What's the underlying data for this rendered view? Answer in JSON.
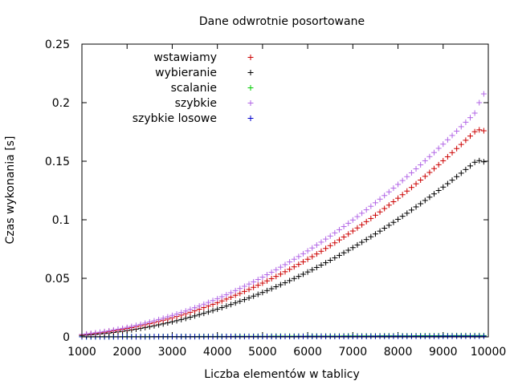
{
  "chart_data": {
    "type": "scatter",
    "title": "Dane odwrotnie posortowane",
    "xlabel": "Liczba elementów w tablicy",
    "ylabel": "Czas wykonania [s]",
    "xlim": [
      1000,
      10000
    ],
    "ylim": [
      0,
      0.25
    ],
    "x_ticks": [
      1000,
      2000,
      3000,
      4000,
      5000,
      6000,
      7000,
      8000,
      9000,
      10000
    ],
    "x_tick_labels": [
      "1000",
      "2000",
      "3000",
      "4000",
      "5000",
      "6000",
      "7000",
      "8000",
      "9000",
      "10000"
    ],
    "y_ticks": [
      0,
      0.05,
      0.1,
      0.15,
      0.2,
      0.25
    ],
    "y_tick_labels": [
      "0",
      "0.05",
      "0.1",
      "0.15",
      "0.2",
      "0.25"
    ],
    "grid": false,
    "legend_position": "top-left",
    "marker": "plus",
    "x": [
      1000,
      1100,
      1200,
      1300,
      1400,
      1500,
      1600,
      1700,
      1800,
      1900,
      2000,
      2100,
      2200,
      2300,
      2400,
      2500,
      2600,
      2700,
      2800,
      2900,
      3000,
      3100,
      3200,
      3300,
      3400,
      3500,
      3600,
      3700,
      3800,
      3900,
      4000,
      4100,
      4200,
      4300,
      4400,
      4500,
      4600,
      4700,
      4800,
      4900,
      5000,
      5100,
      5200,
      5300,
      5400,
      5500,
      5600,
      5700,
      5800,
      5900,
      6000,
      6100,
      6200,
      6300,
      6400,
      6500,
      6600,
      6700,
      6800,
      6900,
      7000,
      7100,
      7200,
      7300,
      7400,
      7500,
      7600,
      7700,
      7800,
      7900,
      8000,
      8100,
      8200,
      8300,
      8400,
      8500,
      8600,
      8700,
      8800,
      8900,
      9000,
      9100,
      9200,
      9300,
      9400,
      9500,
      9600,
      9700,
      9800,
      9900
    ],
    "series": [
      {
        "name": "wstawiamy",
        "color": "#cc0000",
        "values": [
          0.0018,
          0.0022,
          0.0026,
          0.003,
          0.0035,
          0.004,
          0.0046,
          0.0052,
          0.0058,
          0.0065,
          0.0072,
          0.0079,
          0.0087,
          0.0095,
          0.0104,
          0.0113,
          0.0122,
          0.0132,
          0.0142,
          0.0152,
          0.0163,
          0.0174,
          0.0186,
          0.0198,
          0.021,
          0.0223,
          0.0236,
          0.025,
          0.0264,
          0.0278,
          0.0292,
          0.0307,
          0.0323,
          0.0339,
          0.0355,
          0.0371,
          0.0388,
          0.0405,
          0.0423,
          0.0441,
          0.0459,
          0.0478,
          0.0497,
          0.0516,
          0.0536,
          0.0556,
          0.0577,
          0.0598,
          0.0619,
          0.0641,
          0.0663,
          0.0685,
          0.0708,
          0.0731,
          0.0755,
          0.0779,
          0.0803,
          0.0828,
          0.0853,
          0.0878,
          0.0904,
          0.093,
          0.0957,
          0.0984,
          0.1011,
          0.1039,
          0.1067,
          0.1096,
          0.1125,
          0.1154,
          0.1184,
          0.1214,
          0.1245,
          0.1276,
          0.1307,
          0.1339,
          0.1371,
          0.1404,
          0.1437,
          0.147,
          0.1504,
          0.1538,
          0.1573,
          0.1608,
          0.1643,
          0.1679,
          0.1715,
          0.1752,
          0.1768,
          0.176
        ]
      },
      {
        "name": "wybieranie",
        "color": "#000000",
        "values": [
          0.0012,
          0.0015,
          0.0018,
          0.0021,
          0.0025,
          0.0029,
          0.0033,
          0.0038,
          0.0043,
          0.0048,
          0.0054,
          0.006,
          0.0066,
          0.0073,
          0.008,
          0.0087,
          0.0095,
          0.0103,
          0.0111,
          0.012,
          0.0129,
          0.0138,
          0.0148,
          0.0158,
          0.0168,
          0.0179,
          0.019,
          0.0201,
          0.0213,
          0.0225,
          0.0237,
          0.025,
          0.0263,
          0.0276,
          0.029,
          0.0304,
          0.0318,
          0.0333,
          0.0348,
          0.0363,
          0.0379,
          0.0395,
          0.0411,
          0.0428,
          0.0445,
          0.0462,
          0.048,
          0.0498,
          0.0516,
          0.0535,
          0.0554,
          0.0573,
          0.0593,
          0.0613,
          0.0633,
          0.0654,
          0.0675,
          0.0696,
          0.0718,
          0.074,
          0.0762,
          0.0785,
          0.0808,
          0.0831,
          0.0855,
          0.0879,
          0.0903,
          0.0928,
          0.0953,
          0.0978,
          0.1004,
          0.103,
          0.1056,
          0.1083,
          0.111,
          0.1137,
          0.1165,
          0.1193,
          0.1221,
          0.125,
          0.1279,
          0.1308,
          0.1338,
          0.1368,
          0.1398,
          0.1429,
          0.146,
          0.1491,
          0.1505,
          0.1495
        ]
      },
      {
        "name": "scalanie",
        "color": "#00cc00",
        "values": [
          0.0001,
          0.0001,
          0.0001,
          0.0001,
          0.0001,
          0.0001,
          0.0001,
          0.0001,
          0.0001,
          0.0002,
          0.0002,
          0.0002,
          0.0002,
          0.0002,
          0.0002,
          0.0002,
          0.0002,
          0.0002,
          0.0003,
          0.0003,
          0.0003,
          0.0003,
          0.0003,
          0.0003,
          0.0003,
          0.0003,
          0.0004,
          0.0004,
          0.0004,
          0.0004,
          0.0004,
          0.0004,
          0.0004,
          0.0004,
          0.0005,
          0.0005,
          0.0005,
          0.0005,
          0.0005,
          0.0005,
          0.0005,
          0.0005,
          0.0006,
          0.0006,
          0.0006,
          0.0006,
          0.0006,
          0.0006,
          0.0006,
          0.0006,
          0.0007,
          0.0007,
          0.0007,
          0.0007,
          0.0007,
          0.0007,
          0.0007,
          0.0007,
          0.0008,
          0.0008,
          0.0008,
          0.0008,
          0.0008,
          0.0008,
          0.0008,
          0.0008,
          0.0009,
          0.0009,
          0.0009,
          0.0009,
          0.0009,
          0.0009,
          0.0009,
          0.0009,
          0.001,
          0.001,
          0.001,
          0.001,
          0.001,
          0.001,
          0.001,
          0.001,
          0.0011,
          0.0011,
          0.0011,
          0.0011,
          0.0011,
          0.0011,
          0.0011,
          0.0011
        ]
      },
      {
        "name": "szybkie",
        "color": "#b266e6",
        "values": [
          0.0021,
          0.0025,
          0.003,
          0.0035,
          0.004,
          0.0046,
          0.0052,
          0.0059,
          0.0066,
          0.0073,
          0.0081,
          0.0089,
          0.0098,
          0.0107,
          0.0117,
          0.0127,
          0.0137,
          0.0148,
          0.0159,
          0.0171,
          0.0183,
          0.0195,
          0.0208,
          0.0221,
          0.0235,
          0.0249,
          0.0264,
          0.0279,
          0.0294,
          0.031,
          0.0326,
          0.0343,
          0.036,
          0.0377,
          0.0395,
          0.0413,
          0.0432,
          0.0451,
          0.047,
          0.049,
          0.051,
          0.0531,
          0.0552,
          0.0573,
          0.0595,
          0.0617,
          0.064,
          0.0663,
          0.0686,
          0.071,
          0.0734,
          0.0759,
          0.0784,
          0.0809,
          0.0835,
          0.0861,
          0.0888,
          0.0915,
          0.0942,
          0.097,
          0.0998,
          0.1027,
          0.1056,
          0.1085,
          0.1115,
          0.1145,
          0.1176,
          0.1207,
          0.1238,
          0.127,
          0.1302,
          0.1335,
          0.1368,
          0.1401,
          0.1435,
          0.1469,
          0.1504,
          0.1539,
          0.1574,
          0.161,
          0.1646,
          0.1683,
          0.172,
          0.1757,
          0.1795,
          0.1833,
          0.1872,
          0.1911,
          0.2,
          0.2075
        ]
      },
      {
        "name": "szybkie losowe",
        "color": "#0000cc",
        "values": [
          0.0001,
          0.0001,
          0.0001,
          0.0001,
          0.0001,
          0.0001,
          0.0001,
          0.0001,
          0.0001,
          0.0001,
          0.0001,
          0.0001,
          0.0001,
          0.0001,
          0.0001,
          0.0001,
          0.0002,
          0.0002,
          0.0002,
          0.0002,
          0.0002,
          0.0002,
          0.0002,
          0.0002,
          0.0002,
          0.0002,
          0.0002,
          0.0002,
          0.0002,
          0.0002,
          0.0002,
          0.0002,
          0.0003,
          0.0003,
          0.0003,
          0.0003,
          0.0003,
          0.0003,
          0.0003,
          0.0003,
          0.0003,
          0.0003,
          0.0003,
          0.0003,
          0.0003,
          0.0003,
          0.0003,
          0.0003,
          0.0004,
          0.0004,
          0.0004,
          0.0004,
          0.0004,
          0.0004,
          0.0004,
          0.0004,
          0.0004,
          0.0004,
          0.0004,
          0.0004,
          0.0004,
          0.0004,
          0.0004,
          0.0004,
          0.0005,
          0.0005,
          0.0005,
          0.0005,
          0.0005,
          0.0005,
          0.0005,
          0.0005,
          0.0005,
          0.0005,
          0.0005,
          0.0005,
          0.0005,
          0.0005,
          0.0005,
          0.0005,
          0.0006,
          0.0006,
          0.0006,
          0.0006,
          0.0006,
          0.0006,
          0.0006,
          0.0006,
          0.0006,
          0.0006
        ]
      }
    ]
  }
}
